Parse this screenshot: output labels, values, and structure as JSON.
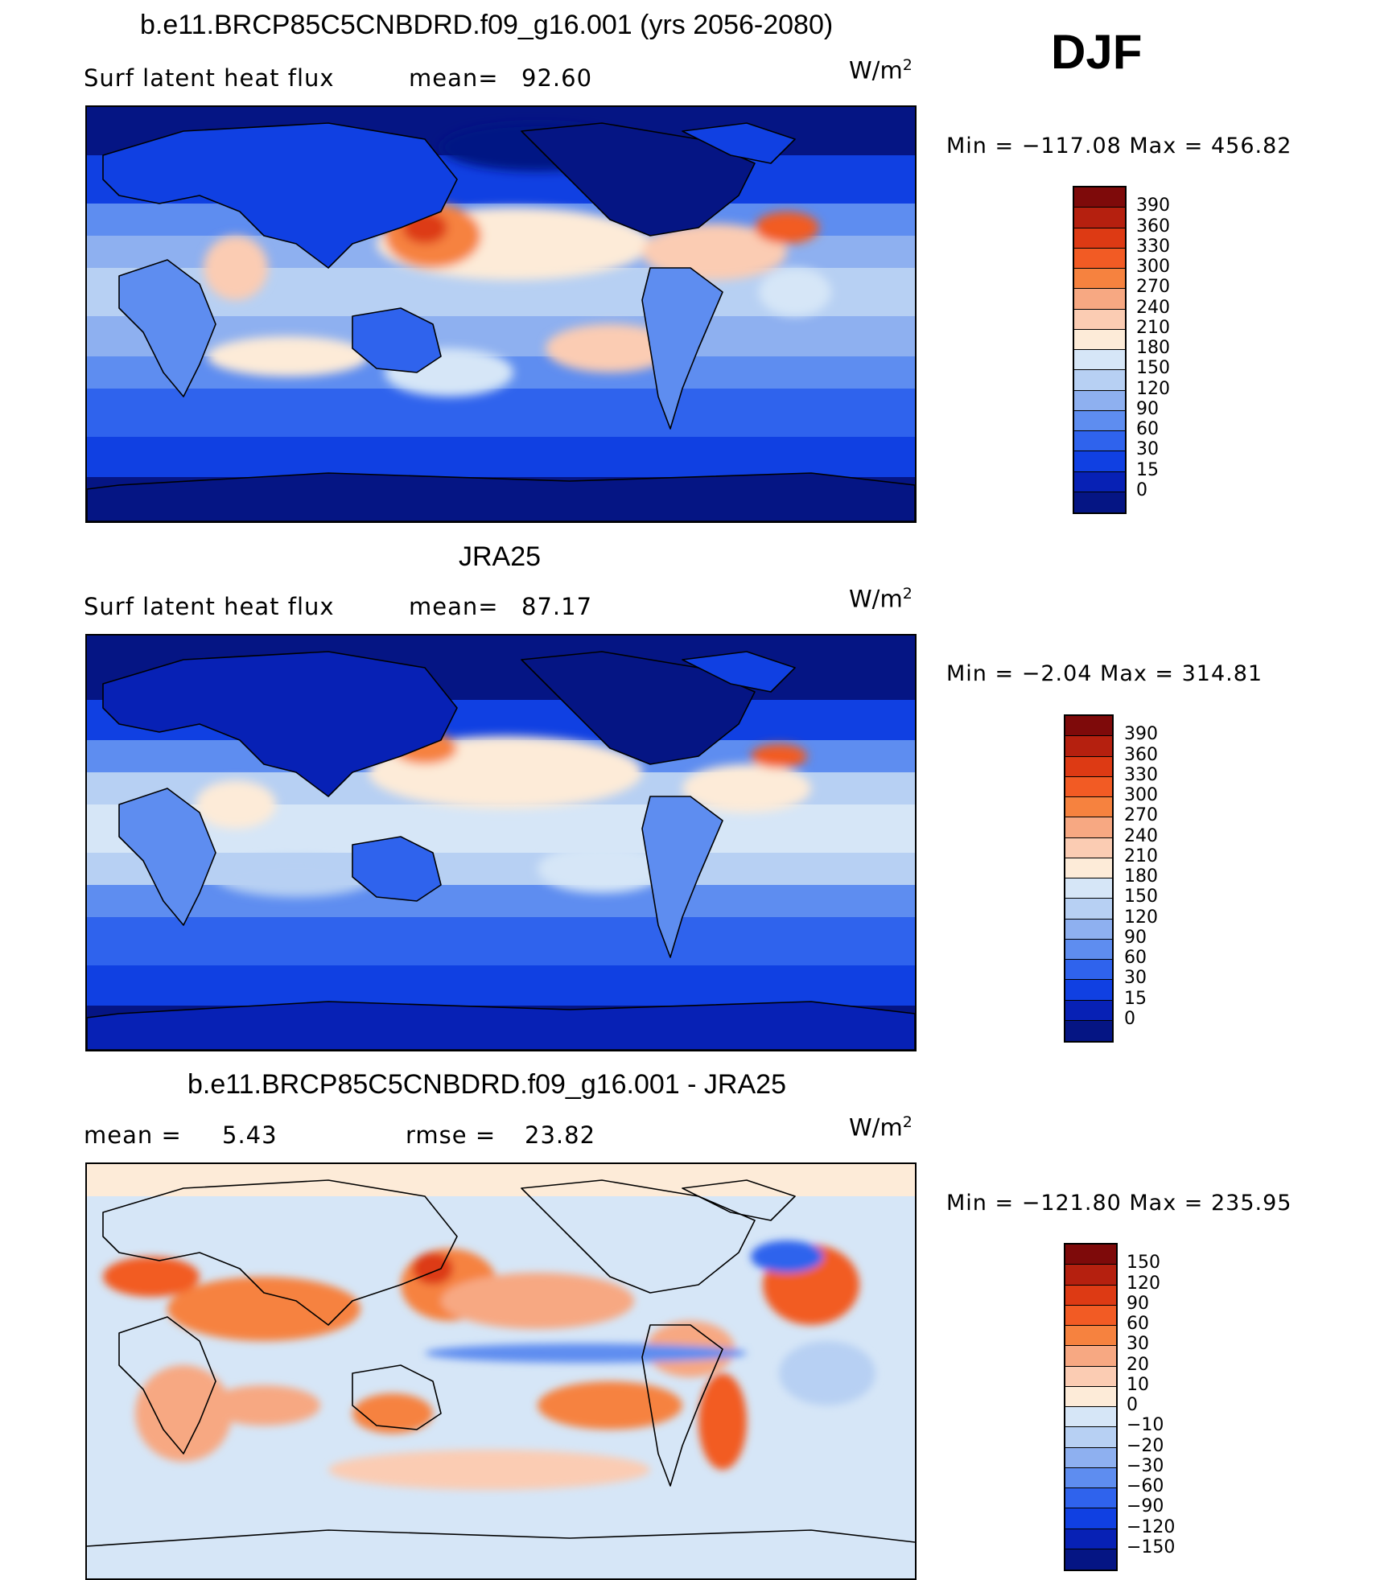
{
  "season": "DJF",
  "colorbar_levels": [
    "390",
    "360",
    "330",
    "300",
    "270",
    "240",
    "210",
    "180",
    "150",
    "120",
    "90",
    "60",
    "30",
    "15",
    "0"
  ],
  "colorbar_colors": [
    "#7e0a0a",
    "#b5200f",
    "#dd3a14",
    "#f25b24",
    "#f6823f",
    "#f7a882",
    "#fbccb3",
    "#fdebd8",
    "#d6e6f7",
    "#b7d0f3",
    "#8eb0f0",
    "#5e8df0",
    "#2f63ed",
    "#1040e2",
    "#0721b5",
    "#051584"
  ],
  "diff_levels": [
    "150",
    "120",
    "90",
    "60",
    "30",
    "20",
    "10",
    "0",
    "−10",
    "−20",
    "−30",
    "−60",
    "−90",
    "−120",
    "−150"
  ],
  "diff_colors": [
    "#7e0a0a",
    "#b5200f",
    "#dd3a14",
    "#f25b24",
    "#f6823f",
    "#f7a882",
    "#fbccb3",
    "#fdebd8",
    "#d6e6f7",
    "#b7d0f3",
    "#8eb0f0",
    "#5e8df0",
    "#2f63ed",
    "#1040e2",
    "#0721b5",
    "#051584"
  ],
  "panel1": {
    "title": "b.e11.BRCP85C5CNBDRD.f09_g16.001 (yrs 2056-2080)",
    "variable": "Surf latent heat flux",
    "mean_label": "mean=",
    "mean_value": "92.60",
    "units": "W/m",
    "units_exp": "2",
    "minmax": "Min = −117.08 Max = 456.82"
  },
  "panel2": {
    "title": "JRA25",
    "variable": "Surf latent heat flux",
    "mean_label": "mean=",
    "mean_value": "87.17",
    "units": "W/m",
    "units_exp": "2",
    "minmax": "Min =  −2.04 Max = 314.81"
  },
  "panel3": {
    "title": "b.e11.BRCP85C5CNBDRD.f09_g16.001 - JRA25",
    "mean_label": "mean =",
    "mean_value": "5.43",
    "rmse_label": "rmse =",
    "rmse_value": "23.82",
    "units": "W/m",
    "units_exp": "2",
    "minmax": "Min = −121.80 Max = 235.95"
  }
}
